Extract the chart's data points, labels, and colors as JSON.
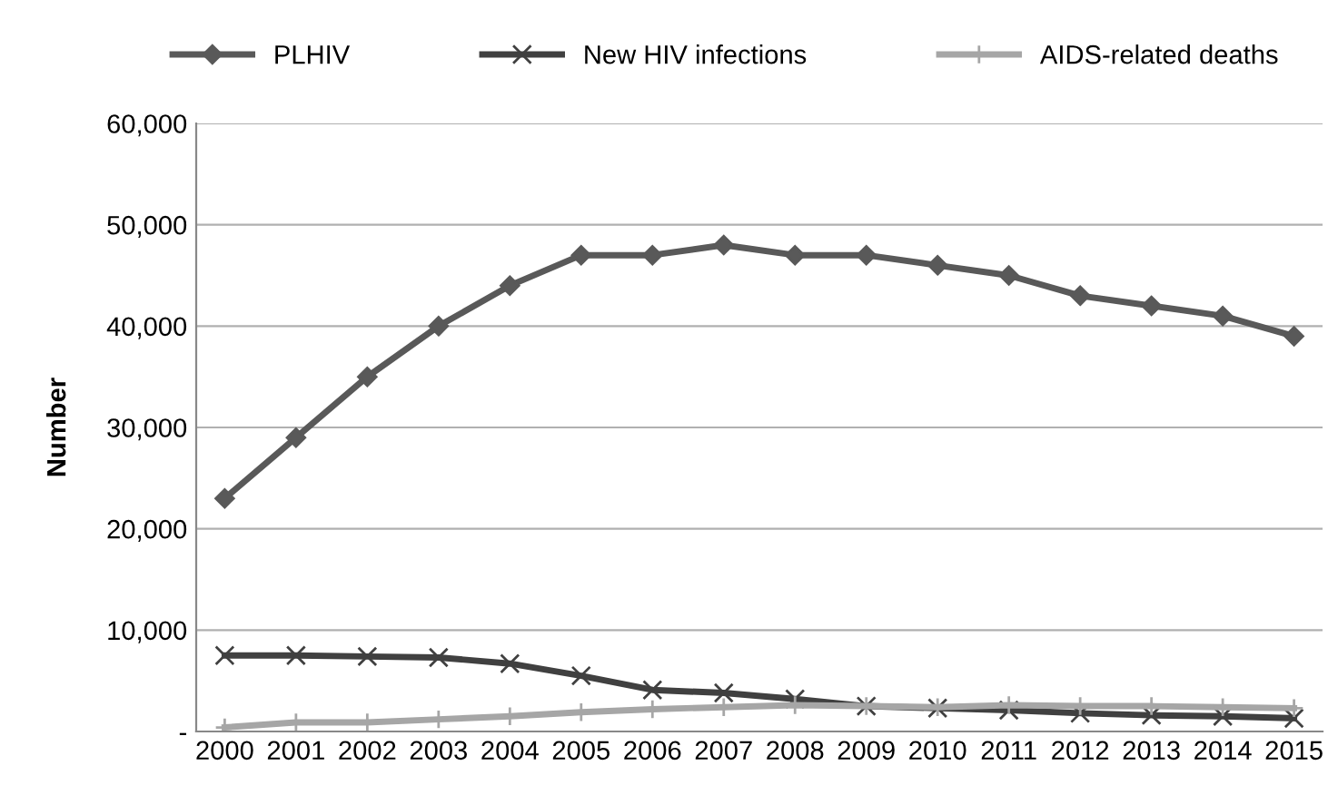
{
  "chart_data": {
    "type": "line",
    "ylabel": "Number",
    "categories": [
      "2000",
      "2001",
      "2002",
      "2003",
      "2004",
      "2005",
      "2006",
      "2007",
      "2008",
      "2009",
      "2010",
      "2011",
      "2012",
      "2013",
      "2014",
      "2015"
    ],
    "series": [
      {
        "name": "PLHIV",
        "color": "#595959",
        "marker": "diamond",
        "values": [
          23000,
          29000,
          35000,
          40000,
          44000,
          47000,
          47000,
          48000,
          47000,
          47000,
          46000,
          45000,
          43000,
          42000,
          41000,
          39000
        ]
      },
      {
        "name": "New HIV infections",
        "color": "#404040",
        "marker": "cross",
        "values": [
          7500,
          7500,
          7400,
          7300,
          6700,
          5500,
          4100,
          3800,
          3200,
          2500,
          2300,
          2100,
          1800,
          1600,
          1500,
          1300
        ]
      },
      {
        "name": "AIDS-related deaths",
        "color": "#a6a6a6",
        "marker": "plus",
        "values": [
          400,
          900,
          900,
          1200,
          1500,
          1900,
          2200,
          2400,
          2600,
          2500,
          2400,
          2600,
          2500,
          2500,
          2400,
          2300
        ]
      }
    ],
    "ylim": [
      0,
      60000
    ],
    "yticks": [
      {
        "value": 0,
        "label": "-"
      },
      {
        "value": 10000,
        "label": "10,000"
      },
      {
        "value": 20000,
        "label": "20,000"
      },
      {
        "value": 30000,
        "label": "30,000"
      },
      {
        "value": 40000,
        "label": "40,000"
      },
      {
        "value": 50000,
        "label": "50,000"
      },
      {
        "value": 60000,
        "label": "60,000"
      }
    ],
    "grid": "y",
    "legend": "top"
  }
}
